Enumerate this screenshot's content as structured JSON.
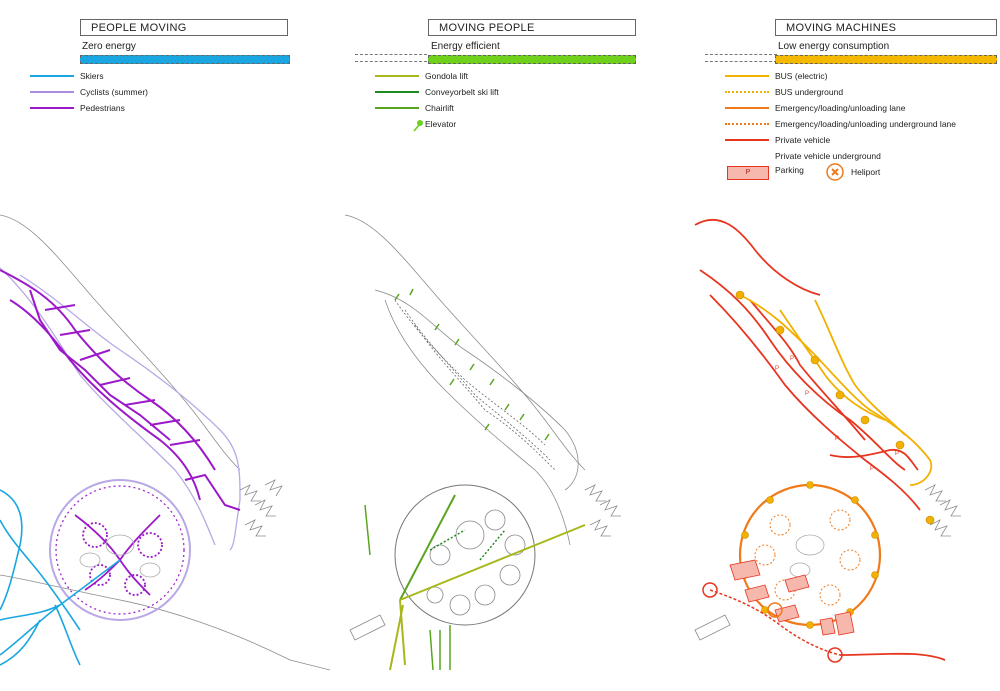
{
  "panels": [
    {
      "title": "PEOPLE MOVING",
      "subtitle": "Zero energy",
      "color": "#1aa6e0",
      "legend": [
        {
          "label": "Skiers",
          "color": "#1aa6e0",
          "style": "solid"
        },
        {
          "label": "Cyclists (summer)",
          "color": "#a98ee0",
          "style": "solid"
        },
        {
          "label": "Pedestrians",
          "color": "#9b19c8",
          "style": "solid"
        }
      ]
    },
    {
      "title": "MOVING PEOPLE",
      "subtitle": "Energy efficient",
      "color": "#6fd11c",
      "legend": [
        {
          "label": "Gondola lift",
          "color": "#a8b81c",
          "style": "solid"
        },
        {
          "label": "Conveyorbelt ski lift",
          "color": "#1f8a1f",
          "style": "solid"
        },
        {
          "label": "Chairlift",
          "color": "#5aa51f",
          "style": "solid"
        },
        {
          "label": "Elevator",
          "color": "#6fcf1f",
          "style": "pin"
        }
      ]
    },
    {
      "title": "MOVING MACHINES",
      "subtitle": "Low energy consumption",
      "color": "#f5b800",
      "legend": [
        {
          "label": "BUS (electric)",
          "color": "#f2b000",
          "style": "solid"
        },
        {
          "label": "BUS underground",
          "color": "#f2b000",
          "style": "dotted"
        },
        {
          "label": "Emergency/loading/unloading lane",
          "color": "#f07a1a",
          "style": "solid"
        },
        {
          "label": "Emergency/loading/unloading underground lane",
          "color": "#f07a1a",
          "style": "dotted"
        },
        {
          "label": "Private vehicle",
          "color": "#e8351f",
          "style": "solid"
        },
        {
          "label": "Private vehicle underground",
          "color": "#e8351f",
          "style": "none"
        }
      ],
      "extras": {
        "parking_label": "Parking",
        "parking_symbol": "P",
        "heliport_label": "Heliport"
      }
    }
  ]
}
